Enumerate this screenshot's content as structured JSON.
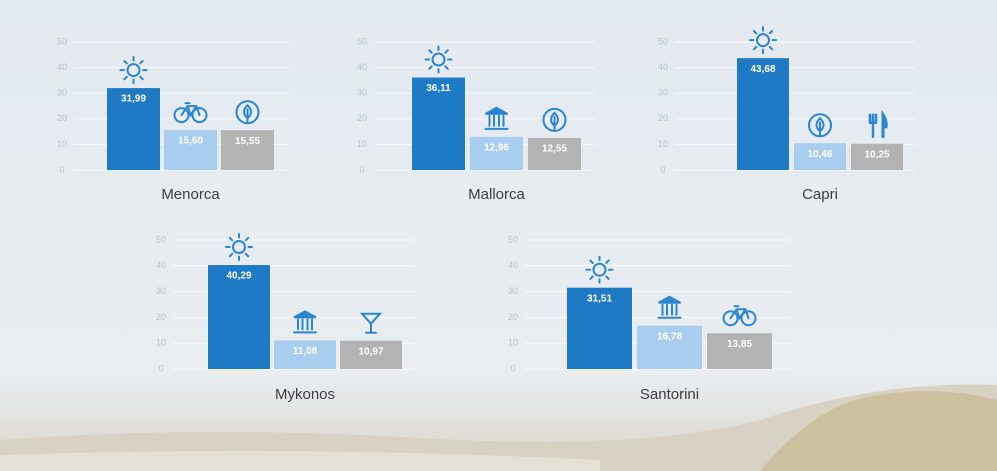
{
  "chart_data": [
    {
      "type": "bar",
      "title": "Menorca",
      "categories": [
        null,
        null,
        null
      ],
      "values": [
        31.99,
        15.6,
        15.55
      ],
      "value_labels": [
        "31,99",
        "15,60",
        "15,55"
      ],
      "colors": [
        "#1e7ac4",
        "#a8cdee",
        "#b3b3b3"
      ],
      "ylim": [
        0,
        50
      ],
      "yticks": [
        0,
        10,
        20,
        30,
        40,
        50
      ],
      "grid": true
    },
    {
      "type": "bar",
      "title": "Mallorca",
      "categories": [
        null,
        null,
        null
      ],
      "values": [
        36.11,
        12.96,
        12.55
      ],
      "value_labels": [
        "36,11",
        "12,96",
        "12,55"
      ],
      "colors": [
        "#1e7ac4",
        "#a8cdee",
        "#b3b3b3"
      ],
      "ylim": [
        0,
        50
      ],
      "yticks": [
        0,
        10,
        20,
        30,
        40,
        50
      ],
      "grid": true
    },
    {
      "type": "bar",
      "title": "Capri",
      "categories": [
        null,
        null,
        null
      ],
      "values": [
        43.68,
        10.46,
        10.25
      ],
      "value_labels": [
        "43,68",
        "10,46",
        "10,25"
      ],
      "colors": [
        "#1e7ac4",
        "#a8cdee",
        "#b3b3b3"
      ],
      "ylim": [
        0,
        50
      ],
      "yticks": [
        0,
        10,
        20,
        30,
        40,
        50
      ],
      "grid": true
    },
    {
      "type": "bar",
      "title": "Mykonos",
      "categories": [
        null,
        null,
        null
      ],
      "values": [
        40.29,
        11.08,
        10.97
      ],
      "value_labels": [
        "40,29",
        "11,08",
        "10,97"
      ],
      "colors": [
        "#1e7ac4",
        "#a8cdee",
        "#b3b3b3"
      ],
      "ylim": [
        0,
        50
      ],
      "yticks": [
        0,
        10,
        20,
        30,
        40,
        50
      ],
      "grid": true
    },
    {
      "type": "bar",
      "title": "Santorini",
      "categories": [
        null,
        null,
        null
      ],
      "values": [
        31.51,
        16.78,
        13.85
      ],
      "value_labels": [
        "31,51",
        "16,78",
        "13,85"
      ],
      "colors": [
        "#1e7ac4",
        "#a8cdee",
        "#b3b3b3"
      ],
      "ylim": [
        0,
        50
      ],
      "yticks": [
        0,
        10,
        20,
        30,
        40,
        50
      ],
      "grid": true
    }
  ]
}
